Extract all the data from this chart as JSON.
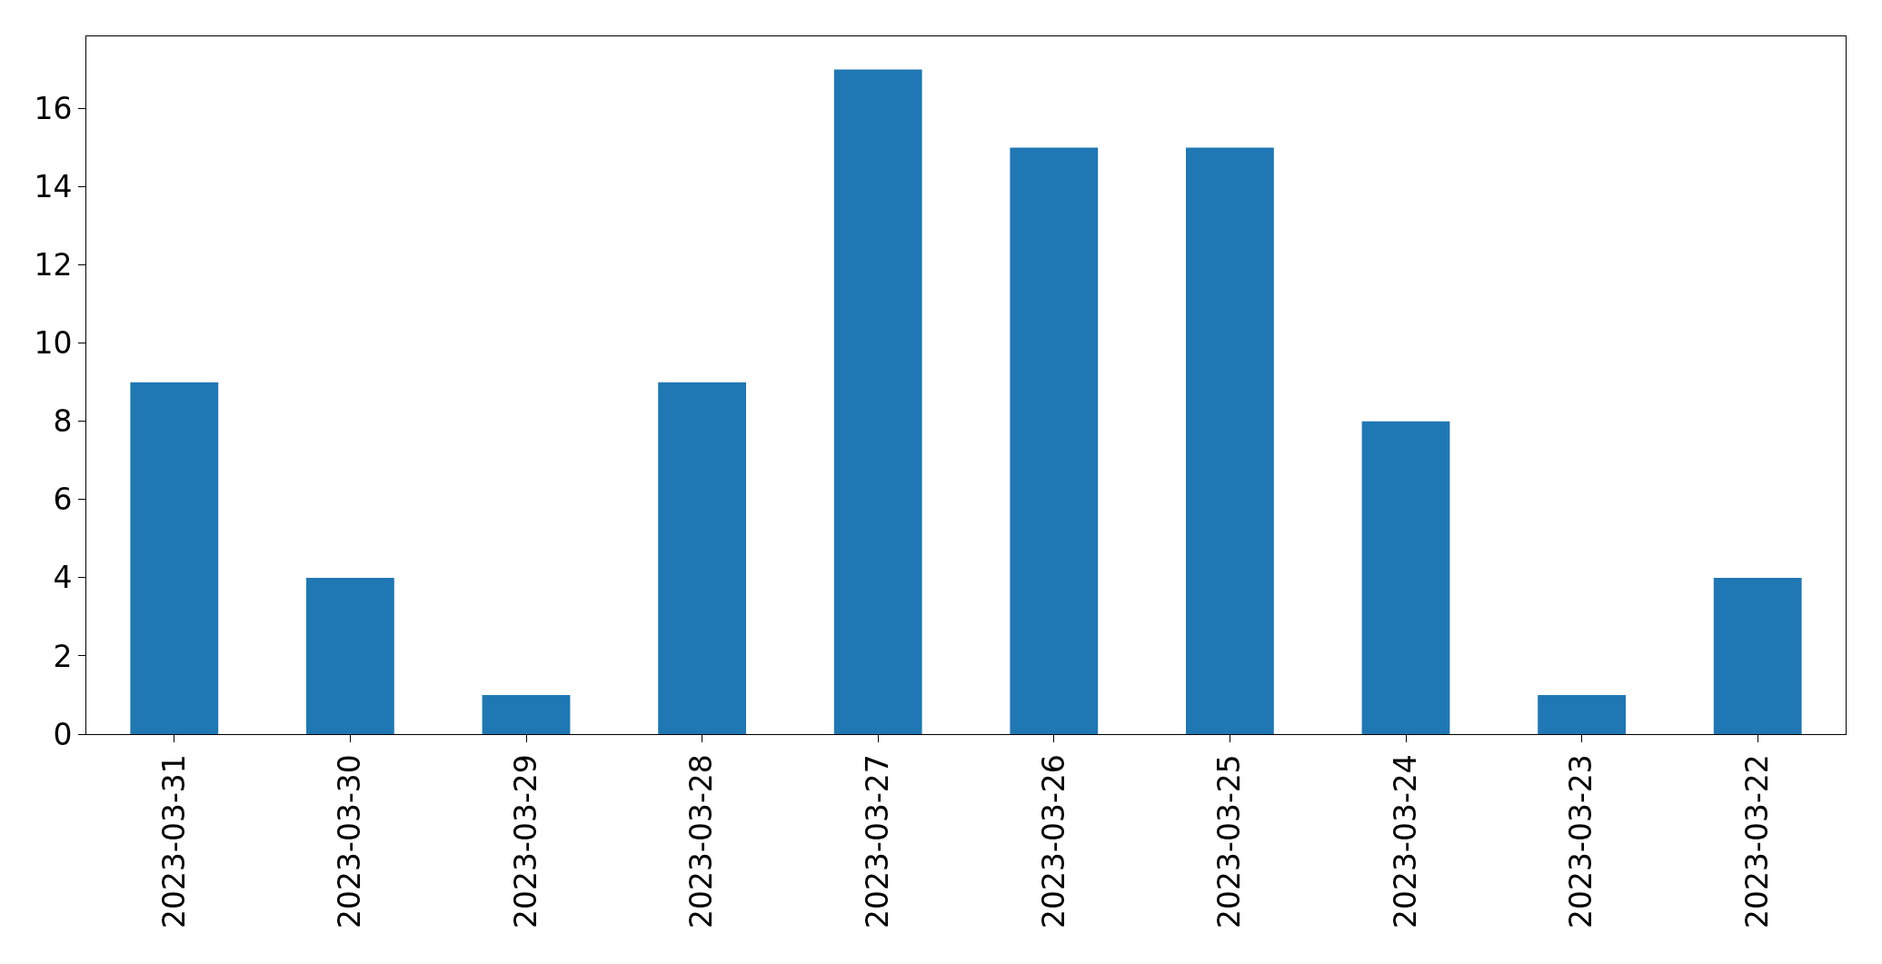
{
  "chart_data": {
    "type": "bar",
    "categories": [
      "2023-03-31",
      "2023-03-30",
      "2023-03-29",
      "2023-03-28",
      "2023-03-27",
      "2023-03-26",
      "2023-03-25",
      "2023-03-24",
      "2023-03-23",
      "2023-03-22"
    ],
    "values": [
      9,
      4,
      1,
      9,
      17,
      15,
      15,
      8,
      1,
      4
    ],
    "color": "#1f77b4",
    "ylim": [
      0,
      17.85
    ],
    "yticks": [
      0,
      2,
      4,
      6,
      8,
      10,
      12,
      14,
      16
    ]
  }
}
